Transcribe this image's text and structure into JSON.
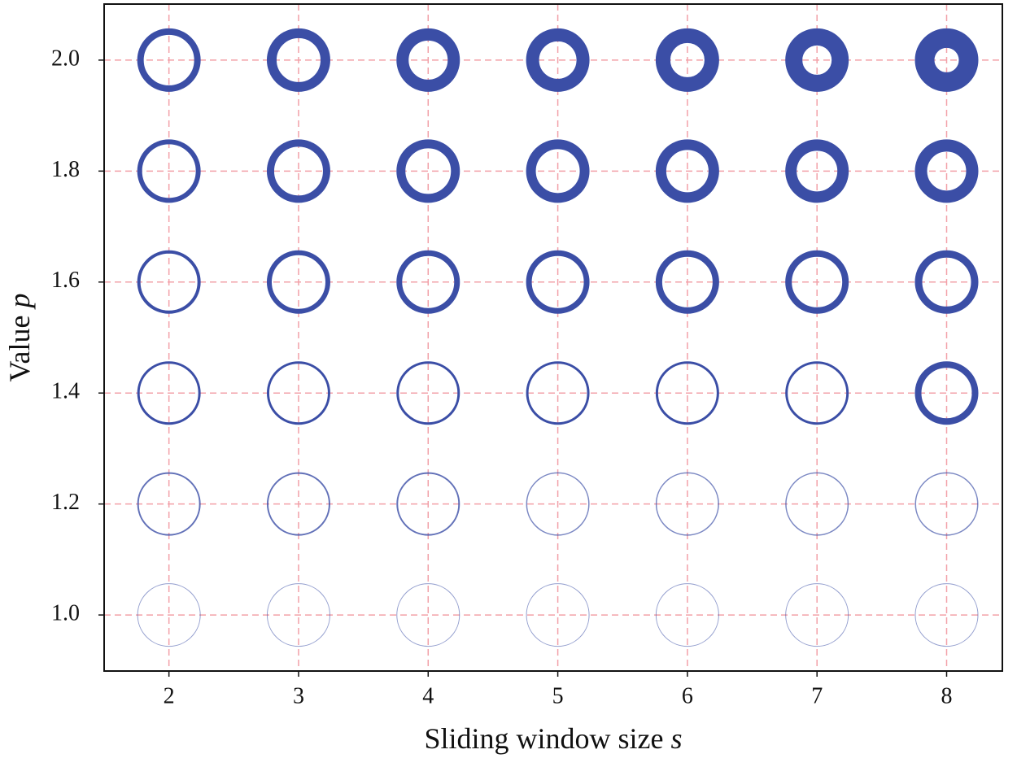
{
  "chart_data": {
    "type": "scatter",
    "xlabel": {
      "text": "Sliding window size",
      "symbol": "s"
    },
    "ylabel": {
      "text": "Value",
      "symbol": "p"
    },
    "xlim": [
      1.5,
      8.43
    ],
    "ylim": [
      0.899,
      2.101
    ],
    "xticks": [
      2,
      3,
      4,
      5,
      6,
      7,
      8
    ],
    "yticks": [
      {
        "value": 1.0,
        "label": "1.0"
      },
      {
        "value": 1.2,
        "label": "1.2"
      },
      {
        "value": 1.4,
        "label": "1.4"
      },
      {
        "value": 1.6,
        "label": "1.6"
      },
      {
        "value": 1.8,
        "label": "1.8"
      },
      {
        "value": 2.0,
        "label": "2.0"
      }
    ],
    "grid": true,
    "series": [
      {
        "color": "#3b4ea6",
        "x": [
          2,
          3,
          4,
          5,
          6,
          7,
          8,
          2,
          3,
          4,
          5,
          6,
          7,
          8,
          2,
          3,
          4,
          5,
          6,
          7,
          8,
          2,
          3,
          4,
          5,
          6,
          7,
          8,
          2,
          3,
          4,
          5,
          6,
          7,
          8,
          2,
          3,
          4,
          5,
          6,
          7,
          8
        ],
        "values": [
          2,
          2,
          2,
          2,
          2,
          2,
          2,
          1.8,
          1.8,
          1.8,
          1.8,
          1.8,
          1.8,
          1.8,
          1.6,
          1.6,
          1.6,
          1.6,
          1.6,
          1.6,
          1.6,
          1.4,
          1.4,
          1.4,
          1.4,
          1.4,
          1.4,
          1.4,
          1.2,
          1.2,
          1.2,
          1.2,
          1.2,
          1.2,
          1.2,
          1,
          1,
          1,
          1,
          1,
          1,
          1
        ],
        "sizes": [
          8,
          12,
          15,
          16,
          18,
          21,
          24,
          6,
          9,
          11,
          12,
          13,
          14,
          15,
          4,
          6,
          7,
          7,
          8,
          8,
          9,
          3,
          3,
          3,
          3,
          3,
          3,
          8,
          2,
          2,
          2,
          1.5,
          1.5,
          1.5,
          1.5,
          1,
          1,
          1,
          1,
          1,
          1,
          1
        ]
      }
    ]
  }
}
